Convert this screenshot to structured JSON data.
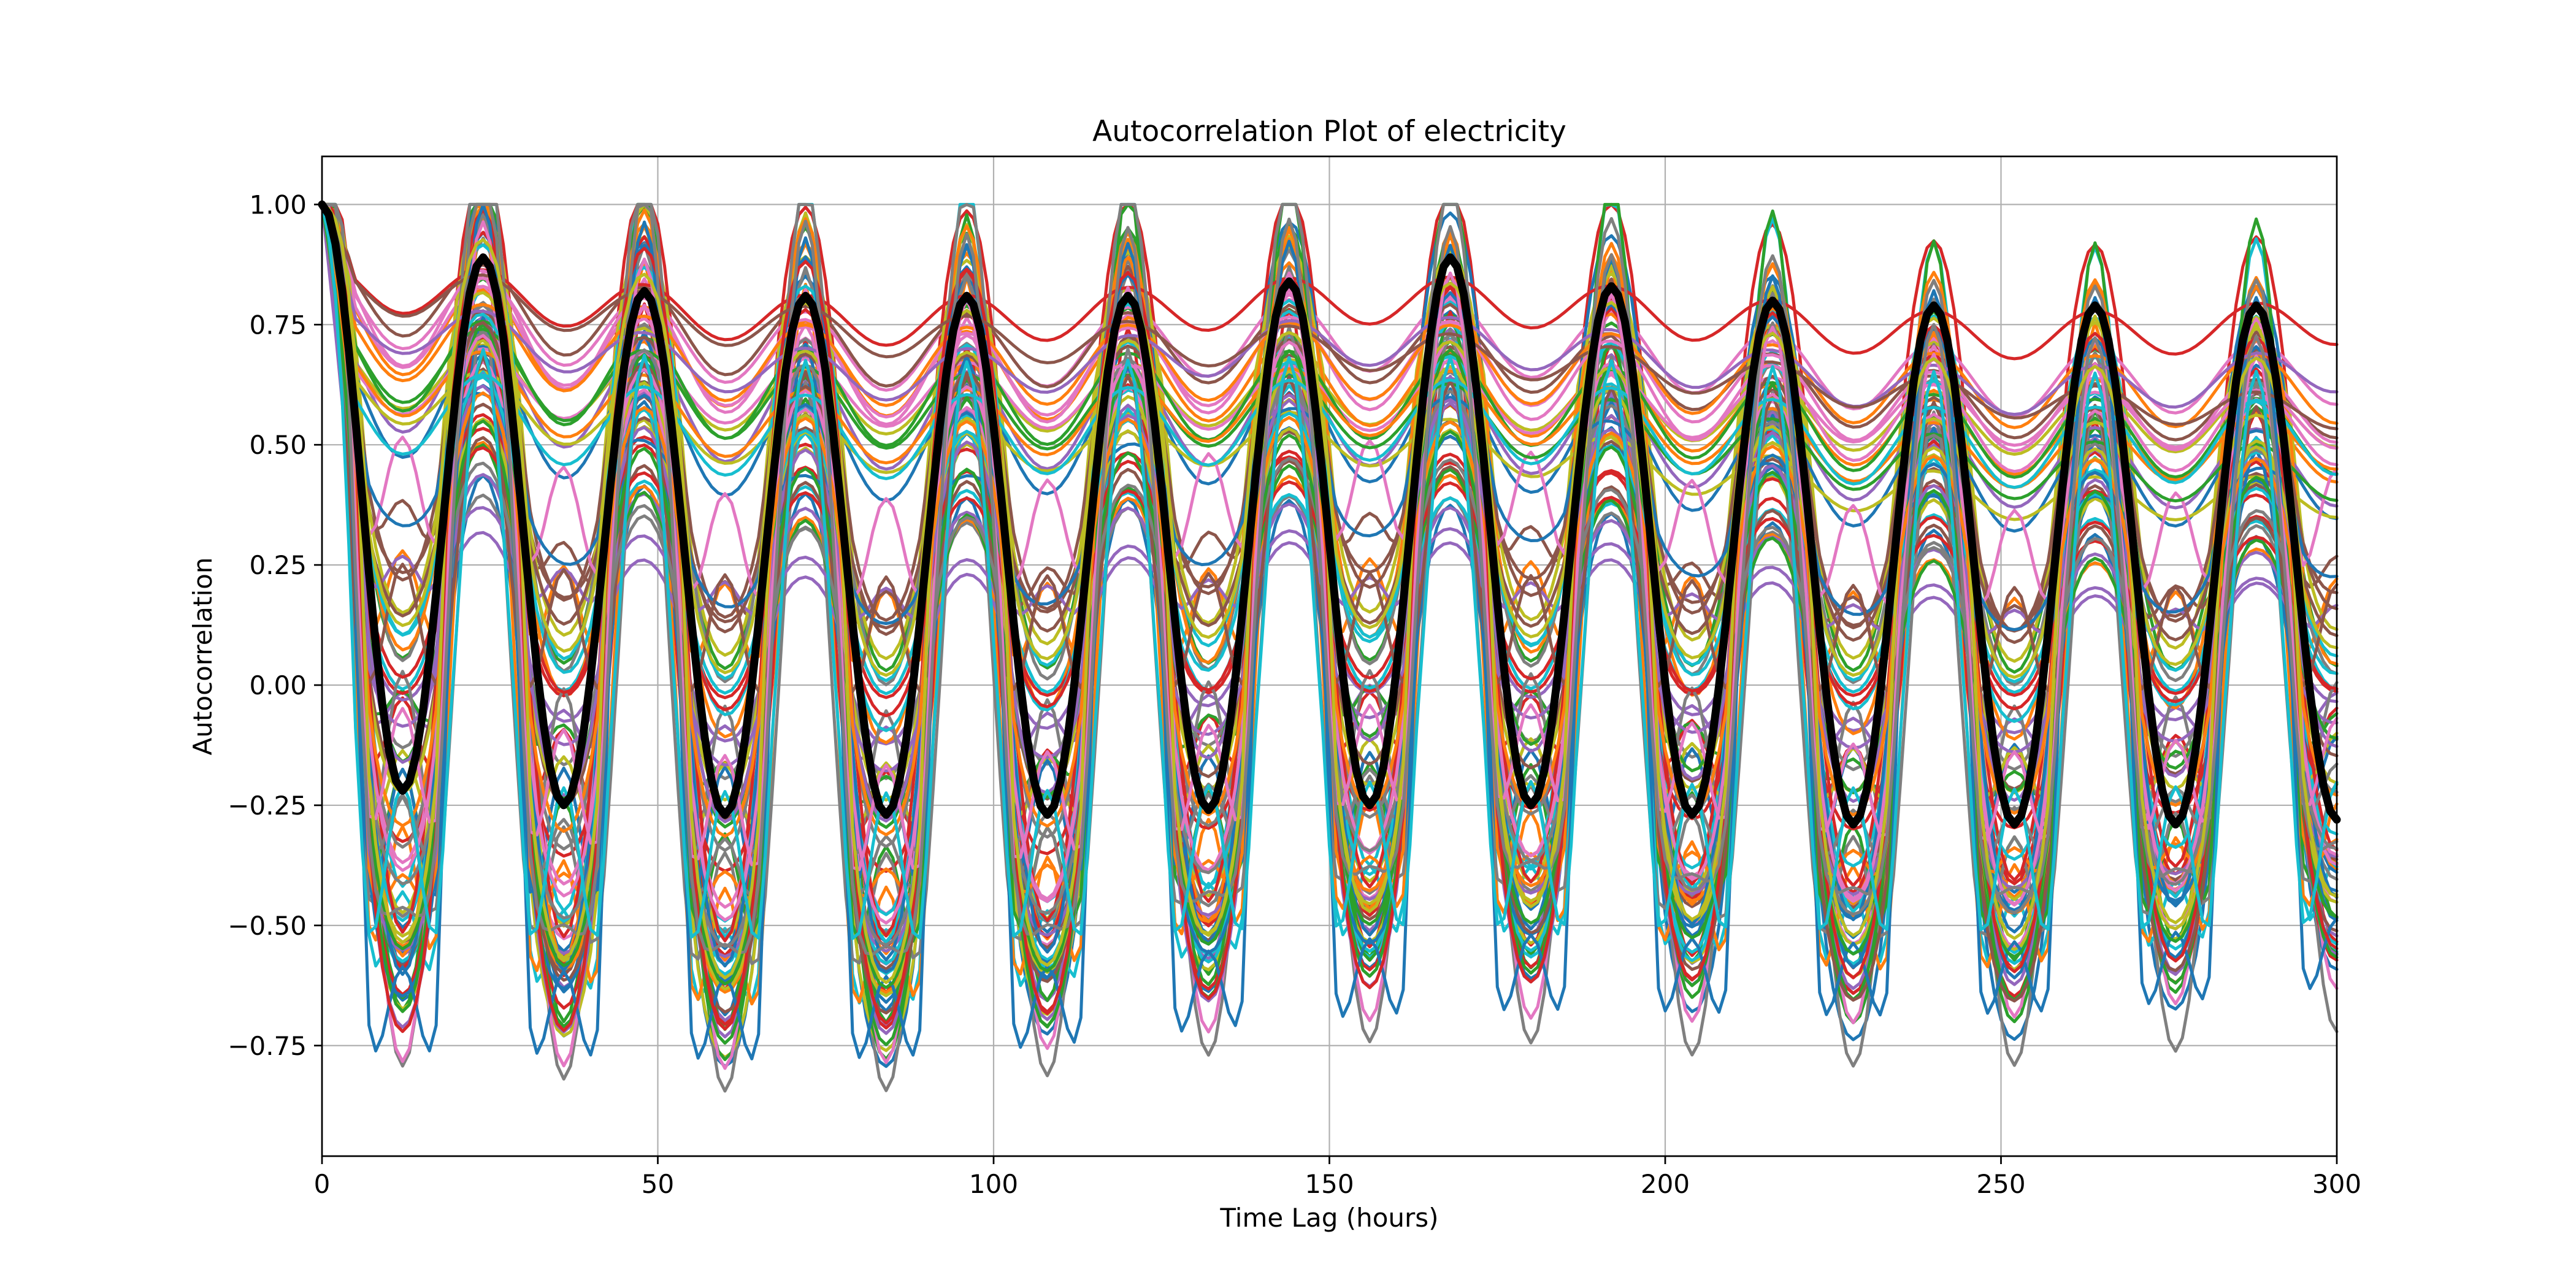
{
  "chart_data": {
    "type": "line",
    "title": "Autocorrelation Plot of electricity",
    "xlabel": "Time Lag (hours)",
    "ylabel": "Autocorrelation",
    "xlim": [
      0,
      300
    ],
    "ylim": [
      -0.98,
      1.1
    ],
    "xticks": [
      0,
      50,
      100,
      150,
      200,
      250,
      300
    ],
    "yticks": [
      1.0,
      0.75,
      0.5,
      0.25,
      0.0,
      -0.25,
      -0.5,
      -0.75
    ],
    "xtick_labels": [
      "0",
      "50",
      "100",
      "150",
      "200",
      "250",
      "300"
    ],
    "ytick_labels": [
      "1.00",
      "0.75",
      "0.50",
      "0.25",
      "0.00",
      "−0.25",
      "−0.50",
      "−0.75"
    ],
    "grid": true,
    "legend": "none",
    "series_style": {
      "count": 100,
      "color_cycle": [
        "#1f77b4",
        "#ff7f0e",
        "#2ca02c",
        "#d62728",
        "#9467bd",
        "#8c564b",
        "#e377c2",
        "#7f7f7f",
        "#bcbd22",
        "#17becf"
      ],
      "mean_color": "#000000"
    },
    "mean_series_peaks": [
      {
        "lag": 0,
        "value": 1.0
      },
      {
        "lag": 12,
        "value": -0.22
      },
      {
        "lag": 24,
        "value": 0.89
      },
      {
        "lag": 36,
        "value": -0.25
      },
      {
        "lag": 48,
        "value": 0.82
      },
      {
        "lag": 60,
        "value": -0.27
      },
      {
        "lag": 72,
        "value": 0.81
      },
      {
        "lag": 84,
        "value": -0.27
      },
      {
        "lag": 96,
        "value": 0.81
      },
      {
        "lag": 108,
        "value": -0.27
      },
      {
        "lag": 120,
        "value": 0.81
      },
      {
        "lag": 132,
        "value": -0.26
      },
      {
        "lag": 144,
        "value": 0.84
      },
      {
        "lag": 156,
        "value": -0.25
      },
      {
        "lag": 168,
        "value": 0.89
      },
      {
        "lag": 180,
        "value": -0.25
      },
      {
        "lag": 192,
        "value": 0.83
      },
      {
        "lag": 204,
        "value": -0.27
      },
      {
        "lag": 216,
        "value": 0.8
      },
      {
        "lag": 228,
        "value": -0.29
      },
      {
        "lag": 240,
        "value": 0.79
      },
      {
        "lag": 252,
        "value": -0.29
      },
      {
        "lag": 264,
        "value": 0.79
      },
      {
        "lag": 276,
        "value": -0.29
      },
      {
        "lag": 288,
        "value": 0.79
      },
      {
        "lag": 300,
        "value": -0.28
      }
    ]
  }
}
